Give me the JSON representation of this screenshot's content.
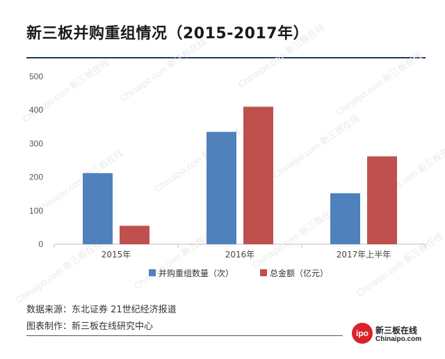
{
  "title": "新三板并购重组情况（2015-2017年）",
  "chart_data": {
    "type": "bar",
    "categories": [
      "2015年",
      "2016年",
      "2017年上半年"
    ],
    "series": [
      {
        "name": "并购重组数量（次）",
        "values": [
          212,
          335,
          152
        ],
        "color": "#4f81bd"
      },
      {
        "name": "总金额（亿元）",
        "values": [
          55,
          410,
          262
        ],
        "color": "#c0504d"
      }
    ],
    "ylim": [
      0,
      500
    ],
    "yticks": [
      0,
      100,
      200,
      300,
      400,
      500
    ],
    "grid": false,
    "legend": "bottom"
  },
  "footer": {
    "source": "数据来源：东北证券  21世纪经济报道",
    "made_by": "图表制作：新三板在线研究中心"
  },
  "logo": {
    "badge": "ipo",
    "name_cn": "新三板在线",
    "name_en": "Chinaipo.com"
  },
  "watermark": "Chinaipo.com 新三板在线"
}
